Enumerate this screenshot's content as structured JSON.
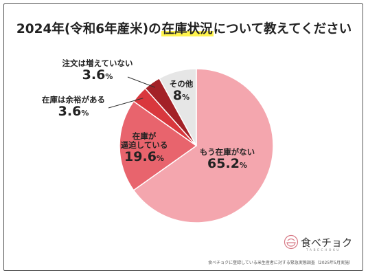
{
  "title": {
    "prefix": "2024年(令和6年産米)の",
    "highlight": "在庫状況",
    "suffix": "について教えてください"
  },
  "chart_data": {
    "type": "pie",
    "title": "2024年(令和6年産米)の在庫状況について教えてください",
    "slices": [
      {
        "label": "もう在庫がない",
        "value": 65.2,
        "display": "65.2",
        "color": "#f4a6ae"
      },
      {
        "label": "在庫が逼迫している",
        "value": 19.6,
        "display": "19.6",
        "color": "#e8646d"
      },
      {
        "label": "在庫は余裕がある",
        "value": 3.6,
        "display": "3.6",
        "color": "#d9373d"
      },
      {
        "label": "注文は増えていない",
        "value": 3.6,
        "display": "3.6",
        "color": "#a32127"
      },
      {
        "label": "その他",
        "value": 8,
        "display": "8",
        "color": "#e6e6e6"
      }
    ],
    "unit": "%",
    "start": "top",
    "direction": "clockwise"
  },
  "labels": {
    "s0_name": "もう在庫がない",
    "s0_val": "65.2",
    "s1_name_line1": "在庫が",
    "s1_name_line2": "逼迫している",
    "s1_val": "19.6",
    "s2_name": "在庫は余裕がある",
    "s2_val": "3.6",
    "s3_name": "注文は増えていない",
    "s3_val": "3.6",
    "s4_name": "その他",
    "s4_val": "8",
    "unit": "%"
  },
  "logo": {
    "text": "食べチョク",
    "sub": "TABECHOKU"
  },
  "source": "食べチョクに登録している米生産者に対する緊急実態調査（2025年5月実施）"
}
